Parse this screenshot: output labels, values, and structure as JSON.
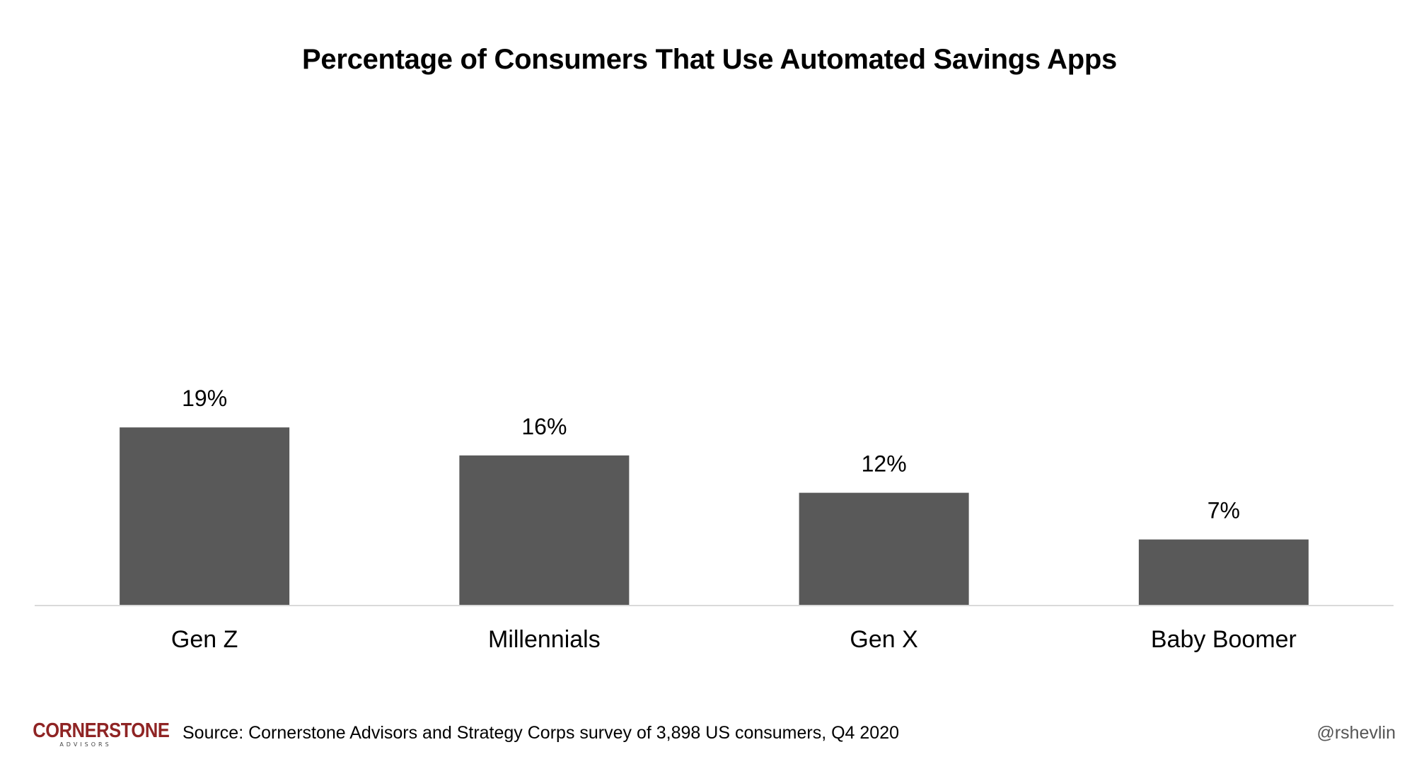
{
  "chart_data": {
    "type": "bar",
    "title": "Percentage of Consumers That Use Automated Savings Apps",
    "categories": [
      "Gen Z",
      "Millennials",
      "Gen X",
      "Baby Boomer"
    ],
    "values": [
      19,
      16,
      12,
      7
    ],
    "data_labels": [
      "19%",
      "16%",
      "12%",
      "7%"
    ],
    "xlabel": "",
    "ylabel": "",
    "ylim": [
      0,
      40
    ],
    "grid": false,
    "bar_color": "#595959",
    "axis_color": "#d9d9d9"
  },
  "footer": {
    "logo_main": "CORNERSTONE",
    "logo_sub": "ADVISORS",
    "source": "Source: Cornerstone Advisors and Strategy Corps survey of 3,898 US consumers, Q4 2020",
    "handle": "@rshevlin"
  },
  "colors": {
    "brand": "#8f2424"
  }
}
